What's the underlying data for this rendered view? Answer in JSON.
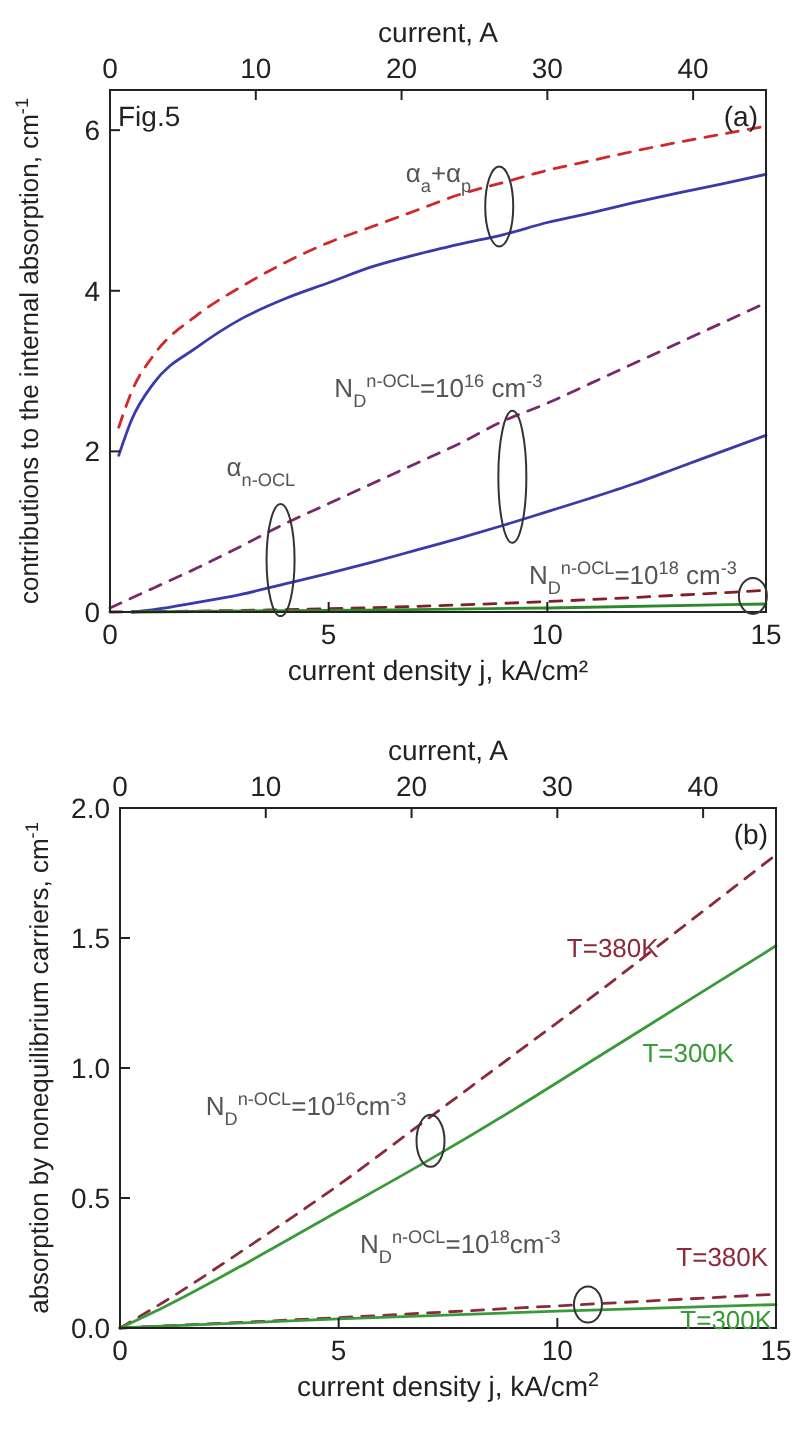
{
  "chart_data": [
    {
      "type": "line",
      "xlabel": "current density $_{}$j, kA/cm²",
      "ylabel": "contributions to the internal absorption, cm$^{-1}$",
      "x2label": "current, A",
      "xlim": [
        0,
        15
      ],
      "xticks": [
        0,
        5,
        10,
        15
      ],
      "ylim": [
        0,
        6.5
      ],
      "yticks": [
        0,
        2,
        4,
        6
      ],
      "x2lim": [
        0,
        45
      ],
      "x2ticks": [
        0,
        10,
        20,
        30,
        40
      ],
      "annotations": [
        "Fig.5",
        "(a)",
        {
          "text": "α$_{a}$+α$_{p}$",
          "x": 8.9,
          "y": 5.05
        },
        {
          "text": "N$_{D}$$^{n-OCL}$=10$^{16}$ cm$^{-3}$",
          "x": 9.2,
          "y": 2.43
        },
        {
          "text": "α$_{n-OCL}$",
          "x": 3.9,
          "y": 1.07
        },
        {
          "text": "N$_{D}$$^{n-OCL}$=10$^{18}$ cm$^{-3}$",
          "x": 14.7,
          "y": 0.2
        }
      ],
      "series": [
        {
          "color": "#d02828",
          "line_style": "dashed",
          "x": [
            0.2,
            0.5,
            1,
            2,
            3,
            4,
            5,
            6,
            7,
            8,
            9,
            10,
            11,
            12,
            13,
            14,
            15
          ],
          "values": [
            2.3,
            2.75,
            3.2,
            3.7,
            4.05,
            4.35,
            4.6,
            4.8,
            5.0,
            5.2,
            5.35,
            5.5,
            5.62,
            5.74,
            5.85,
            5.95,
            6.05
          ]
        },
        {
          "color": "#3a3aaa",
          "line_style": "solid",
          "x": [
            0.2,
            0.5,
            1,
            2,
            3,
            4,
            5,
            6,
            7,
            8,
            9,
            10,
            11,
            12,
            13,
            14,
            15
          ],
          "values": [
            1.95,
            2.4,
            2.85,
            3.3,
            3.65,
            3.9,
            4.1,
            4.3,
            4.45,
            4.58,
            4.7,
            4.85,
            4.97,
            5.1,
            5.22,
            5.33,
            5.45
          ]
        },
        {
          "color": "#7a2a6a",
          "line_style": "dashed",
          "x": [
            0,
            1,
            2,
            3,
            4,
            5,
            6,
            7,
            8,
            9,
            10,
            11,
            12,
            13,
            14,
            15
          ],
          "values": [
            0.05,
            0.3,
            0.55,
            0.82,
            1.1,
            1.35,
            1.6,
            1.85,
            2.1,
            2.38,
            2.6,
            2.85,
            3.1,
            3.35,
            3.6,
            3.85
          ]
        },
        {
          "color": "#3a3aaa",
          "line_style": "solid",
          "x": [
            0.5,
            1,
            2,
            3,
            4,
            5,
            6,
            7,
            8,
            9,
            10,
            11,
            12,
            13,
            14,
            15
          ],
          "values": [
            0,
            0.03,
            0.12,
            0.22,
            0.35,
            0.48,
            0.62,
            0.77,
            0.92,
            1.08,
            1.25,
            1.42,
            1.6,
            1.8,
            2.0,
            2.2
          ]
        },
        {
          "color": "#802028",
          "line_style": "dashed",
          "x": [
            0,
            5,
            10,
            15
          ],
          "values": [
            0,
            0.04,
            0.13,
            0.27
          ]
        },
        {
          "color": "#2a8a2a",
          "line_style": "solid",
          "x": [
            0.5,
            5,
            10,
            15
          ],
          "values": [
            0,
            0.02,
            0.05,
            0.1
          ]
        }
      ]
    },
    {
      "type": "line",
      "xlabel": "current density $_{}$j, kA/cm$^{2}$",
      "ylabel": "absorption by nonequilibrium carriers, cm$^{-1}$",
      "x2label": "current, A",
      "xlim": [
        0,
        15
      ],
      "xticks": [
        0,
        5,
        10,
        15
      ],
      "ylim": [
        0,
        2
      ],
      "yticks": [
        {
          "value": 0,
          "label": "0.0"
        },
        {
          "value": 0.5,
          "label": "0.5"
        },
        {
          "value": 1,
          "label": "1.0"
        },
        {
          "value": 1.5,
          "label": "1.5"
        },
        {
          "value": 2,
          "label": "2.0"
        }
      ],
      "x2lim": [
        0,
        45
      ],
      "x2ticks": [
        0,
        10,
        20,
        30,
        40
      ],
      "annotations": [
        "(b)",
        {
          "text": "N$_{D}$$^{n-OCL}$=10$^{16}$cm$^{-3}$",
          "x": 7.1,
          "y": 0.72
        },
        {
          "text": "T=380K",
          "x": 12.5,
          "y": 1.52
        },
        {
          "text": "T=300K",
          "x": 13.5,
          "y": 1.33
        },
        {
          "text": "N$_{D}$$^{n-OCL}$=10$^{18}$cm$^{-3}$",
          "x": 10.7,
          "y": 0.09
        },
        {
          "text": "T=380K",
          "x": 14.5,
          "y": 0.13
        },
        {
          "text": "T=300K",
          "x": 14.5,
          "y": 0.09
        }
      ],
      "series": [
        {
          "color": "#8b2a3a",
          "line_style": "dashed",
          "x": [
            0,
            1,
            3,
            5,
            7,
            9,
            11,
            13,
            15
          ],
          "values": [
            0,
            0.1,
            0.32,
            0.55,
            0.8,
            1.05,
            1.3,
            1.56,
            1.82
          ]
        },
        {
          "color": "#3a9a3a",
          "line_style": "solid",
          "x": [
            0,
            1,
            3,
            5,
            7,
            9,
            11,
            13,
            15
          ],
          "values": [
            0,
            0.08,
            0.26,
            0.45,
            0.64,
            0.84,
            1.05,
            1.26,
            1.47
          ]
        },
        {
          "color": "#8b2a3a",
          "line_style": "dashed",
          "x": [
            0,
            5,
            10,
            15
          ],
          "values": [
            0,
            0.04,
            0.085,
            0.13
          ]
        },
        {
          "color": "#3a9a3a",
          "line_style": "solid",
          "x": [
            0,
            5,
            10,
            15
          ],
          "values": [
            0,
            0.035,
            0.065,
            0.09
          ]
        }
      ]
    }
  ]
}
